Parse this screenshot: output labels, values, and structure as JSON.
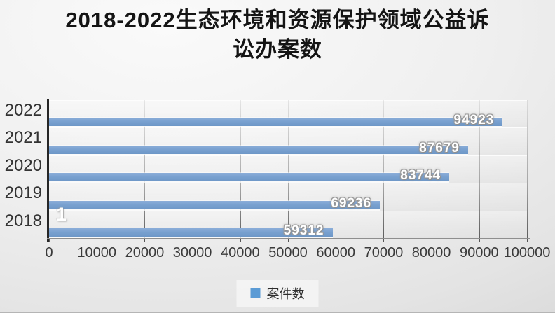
{
  "title": {
    "text": "2018-2022生态环境和资源保护领域公益诉讼办案数",
    "lines": [
      "2018-2022生态环境和资源保护领域公益诉",
      "讼办案数"
    ]
  },
  "chart_data": {
    "type": "bar",
    "orientation": "horizontal",
    "title": "2018-2022生态环境和资源保护领域公益诉讼办案数",
    "categories": [
      "2022",
      "2021",
      "2020",
      "2019",
      "2018"
    ],
    "series": [
      {
        "name": "案件数",
        "values": [
          94923,
          87679,
          83744,
          69236,
          59312
        ]
      }
    ],
    "xlim": [
      0,
      100000
    ],
    "x_ticks": [
      "0",
      "10000",
      "20000",
      "30000",
      "40000",
      "50000",
      "60000",
      "70000",
      "80000",
      "90000",
      "100000"
    ],
    "grid": "vertical",
    "bar_color": "#79A1D0",
    "legend": {
      "position": "bottom",
      "entries": [
        {
          "label": "案件数",
          "color": "#5B9BD5"
        }
      ]
    },
    "stray_label": "1"
  }
}
